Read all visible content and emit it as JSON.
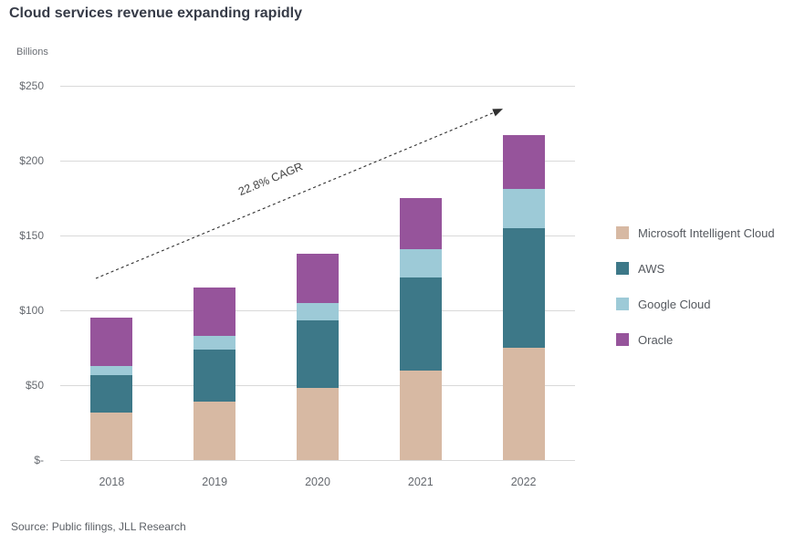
{
  "page": {
    "title": "Cloud services revenue expanding rapidly",
    "unit_label": "Billions",
    "source": "Source: Public filings, JLL Research"
  },
  "annotation": {
    "label": "22.8% CAGR"
  },
  "chart_data": {
    "type": "bar",
    "stacked": true,
    "title": "Cloud services revenue expanding rapidly",
    "ylabel": "Billions",
    "xlabel": "",
    "ylim": [
      0,
      250
    ],
    "grid": true,
    "legend_position": "right",
    "categories": [
      "2018",
      "2019",
      "2020",
      "2021",
      "2022"
    ],
    "series": [
      {
        "name": "Microsoft Intelligent Cloud",
        "color": "#d7b9a3",
        "values": [
          32,
          39,
          48,
          60,
          75
        ]
      },
      {
        "name": "AWS",
        "color": "#3d7888",
        "values": [
          25,
          35,
          45,
          62,
          80
        ]
      },
      {
        "name": "Google Cloud",
        "color": "#9dcad7",
        "values": [
          6,
          9,
          12,
          19,
          26
        ]
      },
      {
        "name": "Oracle",
        "color": "#96549b",
        "values": [
          32,
          32,
          33,
          34,
          36
        ]
      }
    ],
    "stack_totals": [
      95,
      115,
      138,
      175,
      217
    ],
    "y_ticks": [
      {
        "value": 0,
        "label": "$-"
      },
      {
        "value": 50,
        "label": "$50"
      },
      {
        "value": 100,
        "label": "$100"
      },
      {
        "value": 150,
        "label": "$150"
      },
      {
        "value": 200,
        "label": "$200"
      },
      {
        "value": 250,
        "label": "$250"
      }
    ],
    "annotation": "22.8% CAGR"
  },
  "colors": {
    "background": "#ffffff",
    "title_text": "#363b47",
    "axis_text": "#65696f",
    "gridline": "#d9d9d9",
    "annotation_line": "#2f2f2f"
  }
}
